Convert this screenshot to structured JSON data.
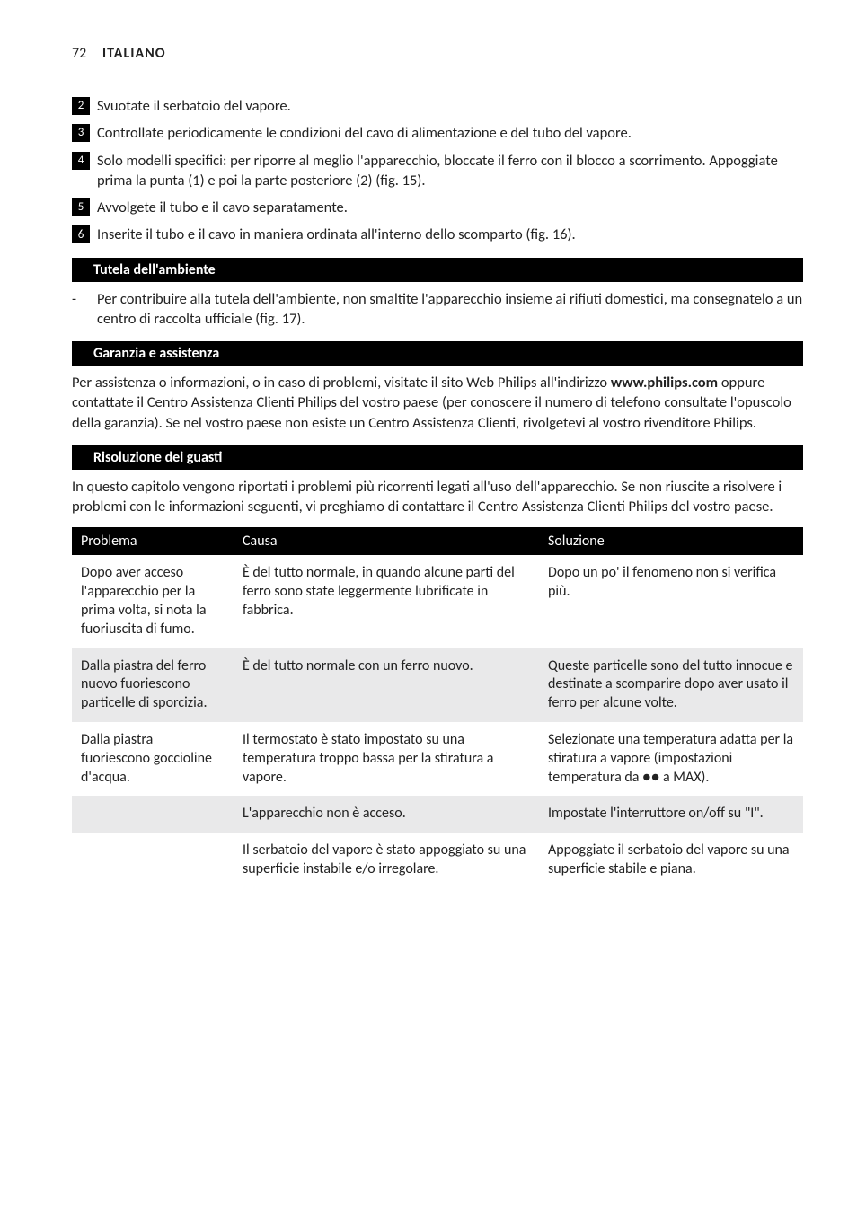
{
  "header": {
    "page_number": "72",
    "language": "ITALIANO"
  },
  "steps": [
    {
      "n": "2",
      "text": "Svuotate il serbatoio del vapore."
    },
    {
      "n": "3",
      "text": "Controllate periodicamente le condizioni del cavo di alimentazione e del tubo del vapore."
    },
    {
      "n": "4",
      "text": "Solo modelli specifici: per riporre al meglio l'apparecchio, bloccate il ferro con il blocco a scorrimento. Appoggiate prima la punta (1) e poi la parte posteriore (2) (fig. 15)."
    },
    {
      "n": "5",
      "text": "Avvolgete il tubo e il cavo separatamente."
    },
    {
      "n": "6",
      "text": "Inserite il tubo e il cavo in maniera ordinata all'interno dello scomparto (fig. 16)."
    }
  ],
  "sections": {
    "env": {
      "title": "Tutela dell'ambiente",
      "bullet": "Per contribuire alla tutela dell'ambiente, non smaltite l'apparecchio insieme ai rifiuti domestici, ma consegnatelo a un centro di raccolta ufficiale (fig. 17)."
    },
    "warranty": {
      "title": "Garanzia e assistenza",
      "para_pre": "Per assistenza o informazioni, o in caso di problemi, visitate il sito Web Philips all'indirizzo ",
      "para_bold": "www.philips.com",
      "para_post": " oppure contattate il Centro Assistenza Clienti Philips del vostro paese (per conoscere il numero di telefono consultate l'opuscolo della garanzia). Se nel vostro paese non esiste un Centro Assistenza Clienti, rivolgetevi al vostro rivenditore Philips."
    },
    "trouble": {
      "title": "Risoluzione dei guasti",
      "intro": "In questo capitolo vengono riportati i problemi più ricorrenti legati all'uso dell'apparecchio. Se non riuscite a risolvere i problemi con le informazioni seguenti, vi preghiamo di contattare il Centro Assistenza Clienti Philips del vostro paese."
    }
  },
  "table": {
    "headers": {
      "problem": "Problema",
      "cause": "Causa",
      "solution": "Soluzione"
    },
    "rows": [
      {
        "problem": "Dopo aver acceso l'apparecchio per la prima volta, si nota la fuoriuscita di fumo.",
        "cause": "È del tutto normale, in quando alcune parti del ferro sono state leggermente lubrificate in fabbrica.",
        "solution": "Dopo un po' il fenomeno non si verifica più."
      },
      {
        "problem": "Dalla piastra del ferro nuovo fuoriescono particelle di sporcizia.",
        "cause": "È del tutto normale con un ferro nuovo.",
        "solution": "Queste particelle sono del tutto innocue e destinate a scomparire dopo aver usato il ferro per alcune volte."
      },
      {
        "problem": "Dalla piastra fuoriescono goccioline d'acqua.",
        "cause": "Il termostato è stato impostato su una temperatura troppo bassa per la stiratura a vapore.",
        "solution": "Selezionate una temperatura adatta per la stiratura a vapore (impostazioni temperatura da ●● a MAX)."
      },
      {
        "problem": "",
        "cause": "L'apparecchio non è acceso.",
        "solution": "Impostate l'interruttore on/off su \"I\"."
      },
      {
        "problem": "",
        "cause": "Il serbatoio del vapore è stato appoggiato su una superficie instabile e/o irregolare.",
        "solution": "Appoggiate il serbatoio del vapore su una superficie stabile e piana."
      }
    ]
  }
}
